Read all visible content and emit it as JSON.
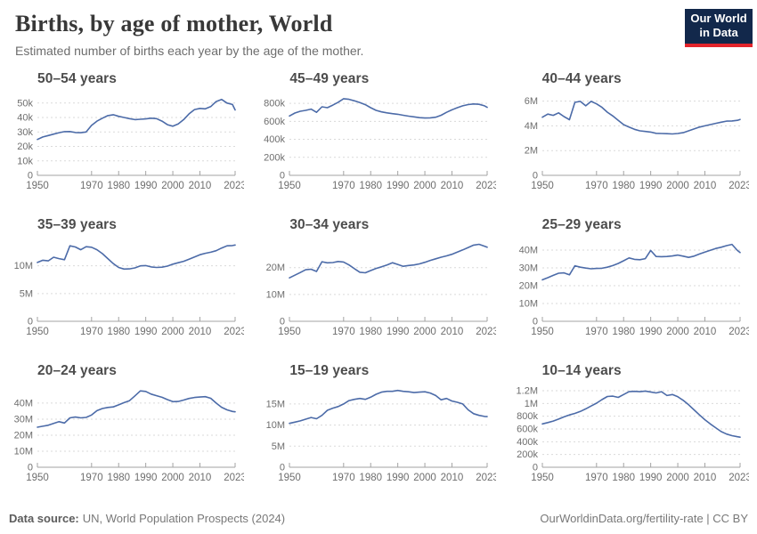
{
  "header": {
    "title": "Births, by age of mother, World",
    "subtitle": "Estimated number of births each year by the age of the mother.",
    "logo": {
      "line1": "Our World",
      "line2": "in Data",
      "bg": "#12284B",
      "accent": "#E3242B"
    }
  },
  "footer": {
    "source_label": "Data source:",
    "source": "UN, World Population Prospects (2024)",
    "credit": "OurWorldinData.org/fertility-rate | CC BY"
  },
  "colors": {
    "line": "#4C6BA8",
    "grid": "#DADADA",
    "axis": "#A3A3A3",
    "tick_text": "#6E6E6E",
    "chart_title": "#4C4C4C"
  },
  "chart_data": {
    "type": "line",
    "grid": "dashed-horizontal",
    "x_years": [
      1950,
      1952,
      1954,
      1956,
      1958,
      1960,
      1962,
      1964,
      1966,
      1968,
      1970,
      1972,
      1974,
      1976,
      1978,
      1980,
      1982,
      1984,
      1986,
      1988,
      1990,
      1992,
      1994,
      1996,
      1998,
      2000,
      2002,
      2004,
      2006,
      2008,
      2010,
      2012,
      2014,
      2016,
      2018,
      2020,
      2022,
      2023
    ],
    "x_ticks": [
      {
        "v": 1950,
        "label": "1950"
      },
      {
        "v": 1970,
        "label": "1970"
      },
      {
        "v": 1980,
        "label": "1980"
      },
      {
        "v": 1990,
        "label": "1990"
      },
      {
        "v": 2000,
        "label": "2000"
      },
      {
        "v": 2010,
        "label": "2010"
      },
      {
        "v": 2023,
        "label": "2023"
      }
    ],
    "charts": [
      {
        "title": "50–54 years",
        "unit": "thousands",
        "ymax": 56,
        "ylim": [
          0,
          56
        ],
        "yticks": [
          {
            "v": 0,
            "label": "0"
          },
          {
            "v": 10,
            "label": "10k"
          },
          {
            "v": 20,
            "label": "20k"
          },
          {
            "v": 30,
            "label": "30k"
          },
          {
            "v": 40,
            "label": "40k"
          },
          {
            "v": 50,
            "label": "50k"
          }
        ],
        "values": [
          24.8,
          26.5,
          27.5,
          28.5,
          29.5,
          30.2,
          30.3,
          29.6,
          29.5,
          30,
          34.5,
          37.5,
          39.5,
          41.3,
          41.9,
          40.8,
          40,
          39.2,
          38.5,
          38.8,
          39,
          39.5,
          39.2,
          37.5,
          35,
          34,
          35.5,
          38.5,
          42.5,
          45.5,
          46.3,
          46,
          47.5,
          51,
          52.5,
          50,
          49,
          45.2
        ]
      },
      {
        "title": "45–49 years",
        "unit": "thousands",
        "ymax": 900,
        "ylim": [
          0,
          900
        ],
        "yticks": [
          {
            "v": 0,
            "label": "0"
          },
          {
            "v": 200,
            "label": "200k"
          },
          {
            "v": 400,
            "label": "400k"
          },
          {
            "v": 600,
            "label": "600k"
          },
          {
            "v": 800,
            "label": "800k"
          }
        ],
        "values": [
          660,
          692,
          712,
          722,
          736,
          700,
          762,
          752,
          780,
          812,
          852,
          845,
          828,
          808,
          785,
          752,
          722,
          705,
          694,
          685,
          678,
          668,
          658,
          650,
          641,
          637,
          639,
          646,
          668,
          700,
          728,
          752,
          772,
          786,
          793,
          789,
          772,
          756
        ]
      },
      {
        "title": "40–44 years",
        "unit": "millions",
        "ymax": 6.55,
        "ylim": [
          0,
          6.55
        ],
        "yticks": [
          {
            "v": 0,
            "label": "0"
          },
          {
            "v": 2,
            "label": "2M"
          },
          {
            "v": 4,
            "label": "4M"
          },
          {
            "v": 6,
            "label": "6M"
          }
        ],
        "values": [
          4.7,
          4.95,
          4.85,
          5.05,
          4.75,
          4.5,
          5.9,
          5.98,
          5.62,
          5.98,
          5.78,
          5.5,
          5.1,
          4.8,
          4.45,
          4.1,
          3.9,
          3.72,
          3.6,
          3.55,
          3.5,
          3.4,
          3.38,
          3.37,
          3.35,
          3.38,
          3.45,
          3.6,
          3.75,
          3.9,
          4,
          4.1,
          4.2,
          4.3,
          4.38,
          4.4,
          4.45,
          4.52
        ]
      },
      {
        "title": "35–39 years",
        "unit": "millions",
        "ymax": 14.6,
        "ylim": [
          0,
          14.6
        ],
        "yticks": [
          {
            "v": 0,
            "label": "0"
          },
          {
            "v": 5,
            "label": "5M"
          },
          {
            "v": 10,
            "label": "10M"
          }
        ],
        "values": [
          10.6,
          11,
          10.9,
          11.55,
          11.3,
          11.1,
          13.6,
          13.4,
          12.9,
          13.45,
          13.35,
          12.9,
          12.2,
          11.3,
          10.4,
          9.7,
          9.42,
          9.45,
          9.62,
          10,
          10.05,
          9.8,
          9.7,
          9.76,
          9.95,
          10.3,
          10.55,
          10.82,
          11.2,
          11.6,
          12,
          12.25,
          12.45,
          12.72,
          13.2,
          13.6,
          13.65,
          13.75
        ]
      },
      {
        "title": "30–34 years",
        "unit": "millions",
        "ymax": 30.2,
        "ylim": [
          0,
          30.2
        ],
        "yticks": [
          {
            "v": 0,
            "label": "0"
          },
          {
            "v": 10,
            "label": "10M"
          },
          {
            "v": 20,
            "label": "20M"
          }
        ],
        "values": [
          16.2,
          17.2,
          18.2,
          19.2,
          19.4,
          18.6,
          22.2,
          21.8,
          21.9,
          22.3,
          22.1,
          21,
          19.6,
          18.3,
          18.1,
          18.9,
          19.7,
          20.3,
          21,
          21.85,
          21.2,
          20.5,
          20.8,
          21,
          21.4,
          22,
          22.7,
          23.3,
          23.9,
          24.4,
          25,
          25.8,
          26.6,
          27.5,
          28.4,
          28.7,
          28,
          27.6
        ]
      },
      {
        "title": "25–29 years",
        "unit": "millions",
        "ymax": 45.5,
        "ylim": [
          0,
          45.5
        ],
        "yticks": [
          {
            "v": 0,
            "label": "0"
          },
          {
            "v": 10,
            "label": "10M"
          },
          {
            "v": 20,
            "label": "20M"
          },
          {
            "v": 30,
            "label": "30M"
          },
          {
            "v": 40,
            "label": "40M"
          }
        ],
        "values": [
          23.3,
          24.5,
          25.8,
          27,
          27.2,
          26.1,
          31.2,
          30.4,
          29.9,
          29.5,
          29.7,
          29.8,
          30.4,
          31.3,
          32.5,
          34,
          35.6,
          34.8,
          34.6,
          35.2,
          39.8,
          36.4,
          36.3,
          36.4,
          36.7,
          37.2,
          36.6,
          35.9,
          36.6,
          37.8,
          38.9,
          39.9,
          40.9,
          41.6,
          42.5,
          43.2,
          39.8,
          38.6
        ]
      },
      {
        "title": "20–24 years",
        "unit": "millions",
        "ymax": 50.5,
        "ylim": [
          0,
          50.5
        ],
        "yticks": [
          {
            "v": 0,
            "label": "0"
          },
          {
            "v": 10,
            "label": "10M"
          },
          {
            "v": 20,
            "label": "20M"
          },
          {
            "v": 30,
            "label": "30M"
          },
          {
            "v": 40,
            "label": "40M"
          }
        ],
        "values": [
          25,
          25.6,
          26.2,
          27.3,
          28.4,
          27.6,
          30.8,
          31.3,
          30.8,
          31.1,
          32.6,
          35.3,
          36.6,
          37.3,
          37.6,
          38.9,
          40.3,
          41.5,
          44.5,
          47.6,
          47.3,
          45.6,
          44.6,
          43.6,
          42.2,
          40.9,
          41,
          41.9,
          42.9,
          43.5,
          43.8,
          44,
          43,
          40,
          37.4,
          35.8,
          34.8,
          34.6
        ]
      },
      {
        "title": "15–19 years",
        "unit": "millions",
        "ymax": 19.2,
        "ylim": [
          0,
          19.2
        ],
        "yticks": [
          {
            "v": 0,
            "label": "0"
          },
          {
            "v": 5,
            "label": "5M"
          },
          {
            "v": 10,
            "label": "10M"
          },
          {
            "v": 15,
            "label": "15M"
          }
        ],
        "values": [
          10.4,
          10.7,
          11,
          11.4,
          11.8,
          11.5,
          12.3,
          13.5,
          14,
          14.4,
          15,
          15.8,
          16.1,
          16.3,
          16.1,
          16.6,
          17.3,
          17.8,
          18,
          18,
          18.2,
          18,
          17.9,
          17.7,
          17.8,
          17.9,
          17.6,
          17,
          16,
          16.3,
          15.7,
          15.4,
          15,
          13.6,
          12.7,
          12.3,
          12.05,
          12
        ]
      },
      {
        "title": "10–14 years",
        "unit": "thousands",
        "ymax": 1270,
        "ylim": [
          0,
          1270
        ],
        "yticks": [
          {
            "v": 0,
            "label": "0"
          },
          {
            "v": 200,
            "label": "200k"
          },
          {
            "v": 400,
            "label": "400k"
          },
          {
            "v": 600,
            "label": "600k"
          },
          {
            "v": 800,
            "label": "800k"
          },
          {
            "v": 1000,
            "label": "1M"
          },
          {
            "v": 1200,
            "label": "1.2M"
          }
        ],
        "values": [
          680,
          700,
          725,
          755,
          790,
          820,
          845,
          875,
          915,
          960,
          1005,
          1060,
          1110,
          1115,
          1095,
          1140,
          1185,
          1190,
          1185,
          1195,
          1180,
          1165,
          1185,
          1125,
          1140,
          1105,
          1050,
          980,
          900,
          820,
          745,
          680,
          620,
          560,
          520,
          495,
          478,
          472
        ]
      }
    ]
  }
}
